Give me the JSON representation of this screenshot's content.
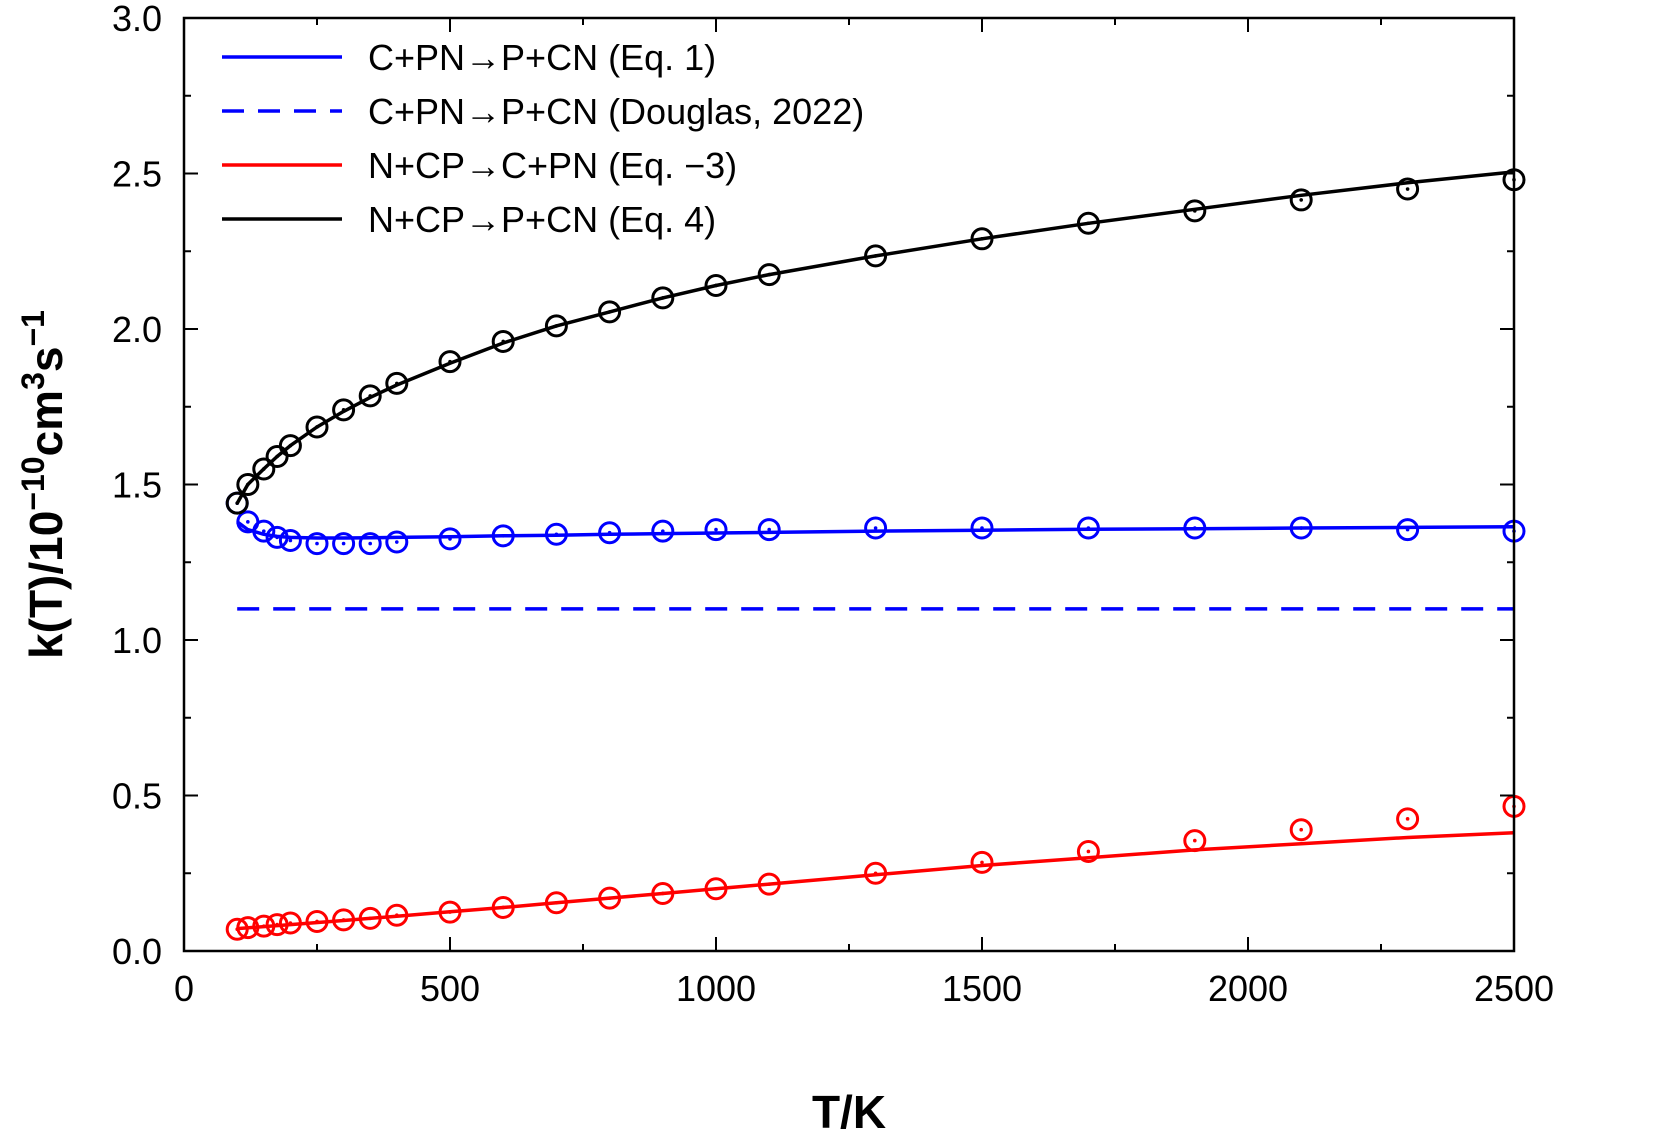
{
  "chart_data": {
    "type": "line",
    "xlabel": "T/K",
    "ylabel": {
      "prefix": "k(T)/10",
      "exp1": "−10",
      "mid1": "cm",
      "exp2": "3",
      "mid2": "s",
      "exp3": "−1"
    },
    "xlim": [
      0,
      2500
    ],
    "ylim": [
      0,
      3.0
    ],
    "xticks": [
      0,
      500,
      1000,
      1500,
      2000,
      2500
    ],
    "xtick_labels": [
      "0",
      "500",
      "1000",
      "1500",
      "2000",
      "2500"
    ],
    "yticks": [
      0.0,
      0.5,
      1.0,
      1.5,
      2.0,
      2.5,
      3.0
    ],
    "ytick_labels": [
      "0.0",
      "0.5",
      "1.0",
      "1.5",
      "2.0",
      "2.5",
      "3.0"
    ],
    "legend_position": "top-left",
    "grid": false,
    "series": [
      {
        "name": "C+PN→P+CN (Eq. 1)",
        "color": "#0000ff",
        "line": "solid",
        "x": [
          100,
          120,
          150,
          175,
          200,
          250,
          300,
          350,
          400,
          500,
          600,
          700,
          800,
          900,
          1000,
          1100,
          1300,
          1500,
          1700,
          1900,
          2100,
          2300,
          2500
        ],
        "y": [
          1.38,
          1.355,
          1.34,
          1.333,
          1.33,
          1.328,
          1.328,
          1.329,
          1.33,
          1.332,
          1.335,
          1.337,
          1.34,
          1.342,
          1.344,
          1.346,
          1.35,
          1.353,
          1.356,
          1.358,
          1.36,
          1.362,
          1.364
        ],
        "markers": {
          "x": [
            100,
            120,
            150,
            175,
            200,
            250,
            300,
            350,
            400,
            500,
            600,
            700,
            800,
            900,
            1000,
            1100,
            1300,
            1500,
            1700,
            1900,
            2100,
            2300,
            2500
          ],
          "y": [
            1.44,
            1.38,
            1.35,
            1.33,
            1.32,
            1.31,
            1.31,
            1.31,
            1.315,
            1.325,
            1.335,
            1.34,
            1.345,
            1.35,
            1.355,
            1.355,
            1.36,
            1.36,
            1.36,
            1.36,
            1.36,
            1.355,
            1.35
          ]
        }
      },
      {
        "name": "C+PN→P+CN (Douglas, 2022)",
        "color": "#0000ff",
        "line": "dashed",
        "x": [
          100,
          2500
        ],
        "y": [
          1.1,
          1.1
        ]
      },
      {
        "name": "N+CP→C+PN (Eq. −3)",
        "color": "#ff0000",
        "line": "solid",
        "x": [
          100,
          200,
          300,
          400,
          500,
          600,
          700,
          800,
          900,
          1000,
          1100,
          1300,
          1500,
          1700,
          1900,
          2100,
          2300,
          2500
        ],
        "y": [
          0.072,
          0.085,
          0.098,
          0.112,
          0.126,
          0.14,
          0.155,
          0.17,
          0.185,
          0.2,
          0.215,
          0.245,
          0.275,
          0.3,
          0.325,
          0.345,
          0.365,
          0.38
        ],
        "markers": {
          "x": [
            100,
            120,
            150,
            175,
            200,
            250,
            300,
            350,
            400,
            500,
            600,
            700,
            800,
            900,
            1000,
            1100,
            1300,
            1500,
            1700,
            1900,
            2100,
            2300,
            2500
          ],
          "y": [
            0.07,
            0.075,
            0.08,
            0.085,
            0.09,
            0.095,
            0.1,
            0.105,
            0.115,
            0.125,
            0.14,
            0.155,
            0.17,
            0.185,
            0.2,
            0.215,
            0.25,
            0.285,
            0.32,
            0.355,
            0.39,
            0.425,
            0.465
          ]
        }
      },
      {
        "name": "N+CP→P+CN (Eq. 4)",
        "color": "#000000",
        "line": "solid",
        "x": [
          100,
          120,
          150,
          175,
          200,
          250,
          300,
          350,
          400,
          500,
          600,
          700,
          800,
          900,
          1000,
          1100,
          1300,
          1500,
          1700,
          1900,
          2100,
          2300,
          2500
        ],
        "y": [
          1.44,
          1.5,
          1.55,
          1.59,
          1.625,
          1.685,
          1.735,
          1.78,
          1.82,
          1.89,
          1.955,
          2.01,
          2.055,
          2.1,
          2.14,
          2.175,
          2.235,
          2.29,
          2.34,
          2.385,
          2.43,
          2.47,
          2.505
        ],
        "markers": {
          "x": [
            100,
            120,
            150,
            175,
            200,
            250,
            300,
            350,
            400,
            500,
            600,
            700,
            800,
            900,
            1000,
            1100,
            1300,
            1500,
            1700,
            1900,
            2100,
            2300,
            2500
          ],
          "y": [
            1.44,
            1.5,
            1.55,
            1.59,
            1.625,
            1.685,
            1.74,
            1.785,
            1.825,
            1.895,
            1.96,
            2.01,
            2.055,
            2.1,
            2.14,
            2.175,
            2.235,
            2.29,
            2.34,
            2.38,
            2.415,
            2.45,
            2.48
          ]
        }
      }
    ]
  }
}
